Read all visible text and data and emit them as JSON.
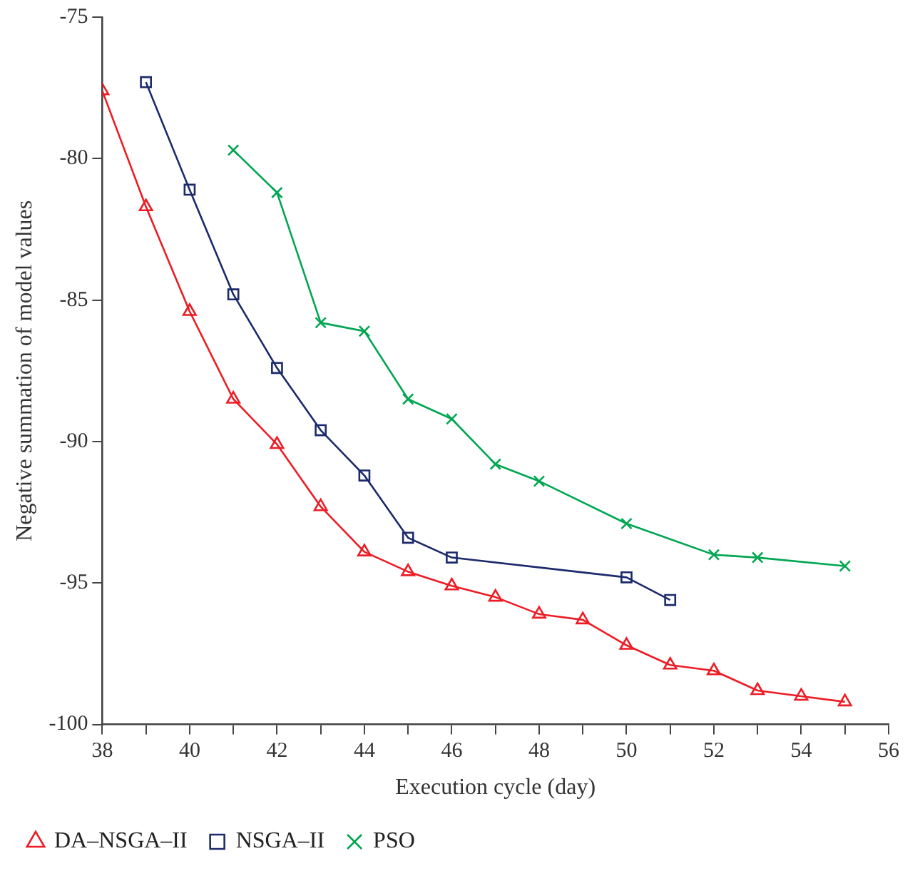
{
  "chart_data": {
    "type": "line",
    "xlabel": "Execution cycle (day)",
    "ylabel": "Negative summation of model values",
    "xlim": [
      38,
      56
    ],
    "xticks": [
      38,
      {
        "value": 39,
        "label": null
      },
      40,
      {
        "value": 41,
        "label": null
      },
      42,
      {
        "value": 43,
        "label": null
      },
      44,
      {
        "value": 45,
        "label": null
      },
      46,
      {
        "value": 47,
        "label": null
      },
      48,
      {
        "value": 49,
        "label": null
      },
      50,
      {
        "value": 51,
        "label": null
      },
      52,
      {
        "value": 53,
        "label": null
      },
      54,
      {
        "value": 55,
        "label": null
      },
      56
    ],
    "ylim": [
      -100,
      -75
    ],
    "yticks": [
      -100,
      -95,
      -90,
      -85,
      -80,
      -75
    ],
    "grid": false,
    "legend": "bottom left",
    "line_style": "solid",
    "series": [
      {
        "name": "DA–NSGA–II",
        "color": "#ed1c24",
        "marker": "triangle",
        "x": [
          38,
          39,
          40,
          41,
          42,
          43,
          44,
          45,
          46,
          47,
          48,
          49,
          50,
          51,
          52,
          53,
          54,
          55
        ],
        "values": [
          -77.6,
          -81.7,
          -85.4,
          -88.5,
          -90.1,
          -92.3,
          -93.9,
          -94.6,
          -95.1,
          -95.5,
          -96.1,
          -96.3,
          -97.2,
          -97.9,
          -98.1,
          -98.8,
          -99.0,
          -99.2
        ]
      },
      {
        "name": "NSGA–II",
        "color": "#1b2a6b",
        "marker": "square",
        "x": [
          39,
          40,
          41,
          42,
          43,
          44,
          45,
          46,
          50,
          51
        ],
        "values": [
          -77.3,
          -81.1,
          -84.8,
          -87.4,
          -89.6,
          -91.2,
          -93.4,
          -94.1,
          -94.8,
          -95.6
        ]
      },
      {
        "name": "PSO",
        "color": "#00a651",
        "marker": "cross",
        "x": [
          41,
          42,
          43,
          44,
          45,
          46,
          47,
          48,
          50,
          52,
          53,
          55
        ],
        "values": [
          -79.7,
          -81.2,
          -85.8,
          -86.1,
          -88.5,
          -89.2,
          -90.8,
          -91.4,
          -92.9,
          -94.0,
          -94.1,
          -94.4
        ]
      }
    ]
  }
}
